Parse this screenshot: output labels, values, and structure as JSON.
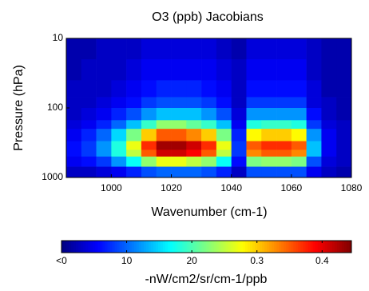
{
  "chart_data": {
    "type": "heatmap",
    "title": "O3 (ppb) Jacobians",
    "xlabel": "Wavenumber (cm-1)",
    "ylabel": "Pressure (hPa)",
    "colorbar_label": "-nW/cm2/sr/cm-1/ppb",
    "x": [
      985,
      990,
      995,
      1000,
      1005,
      1010,
      1015,
      1020,
      1025,
      1030,
      1035,
      1040,
      1045,
      1050,
      1055,
      1060,
      1065,
      1070,
      1075,
      1080
    ],
    "y": [
      10,
      20,
      40,
      70,
      100,
      150,
      200,
      300,
      400,
      500,
      700,
      1000
    ],
    "values": [
      [
        0.02,
        0.02,
        0.03,
        0.03,
        0.03,
        0.04,
        0.04,
        0.04,
        0.04,
        0.04,
        0.03,
        0.02,
        0.04,
        0.04,
        0.04,
        0.04,
        0.03,
        0.02,
        0.02
      ],
      [
        0.02,
        0.03,
        0.03,
        0.03,
        0.04,
        0.05,
        0.05,
        0.05,
        0.05,
        0.05,
        0.04,
        0.03,
        0.05,
        0.05,
        0.05,
        0.05,
        0.03,
        0.02,
        0.02
      ],
      [
        0.03,
        0.03,
        0.03,
        0.04,
        0.05,
        0.06,
        0.07,
        0.07,
        0.07,
        0.06,
        0.05,
        0.03,
        0.06,
        0.06,
        0.06,
        0.06,
        0.04,
        0.02,
        0.02
      ],
      [
        0.03,
        0.03,
        0.04,
        0.05,
        0.06,
        0.08,
        0.09,
        0.09,
        0.09,
        0.08,
        0.06,
        0.03,
        0.08,
        0.08,
        0.08,
        0.08,
        0.04,
        0.03,
        0.02
      ],
      [
        0.03,
        0.04,
        0.05,
        0.07,
        0.09,
        0.12,
        0.14,
        0.14,
        0.14,
        0.12,
        0.09,
        0.04,
        0.12,
        0.12,
        0.12,
        0.12,
        0.06,
        0.03,
        0.02
      ],
      [
        0.04,
        0.05,
        0.07,
        0.1,
        0.14,
        0.19,
        0.23,
        0.23,
        0.21,
        0.19,
        0.14,
        0.05,
        0.18,
        0.19,
        0.19,
        0.18,
        0.08,
        0.04,
        0.03
      ],
      [
        0.05,
        0.07,
        0.1,
        0.15,
        0.22,
        0.3,
        0.35,
        0.35,
        0.33,
        0.3,
        0.22,
        0.07,
        0.28,
        0.3,
        0.3,
        0.28,
        0.12,
        0.05,
        0.03
      ],
      [
        0.06,
        0.08,
        0.12,
        0.18,
        0.27,
        0.37,
        0.43,
        0.43,
        0.41,
        0.37,
        0.27,
        0.08,
        0.35,
        0.37,
        0.37,
        0.35,
        0.14,
        0.05,
        0.03
      ],
      [
        0.06,
        0.08,
        0.12,
        0.18,
        0.25,
        0.35,
        0.41,
        0.41,
        0.39,
        0.35,
        0.25,
        0.08,
        0.33,
        0.35,
        0.35,
        0.33,
        0.14,
        0.05,
        0.03
      ],
      [
        0.05,
        0.06,
        0.08,
        0.12,
        0.17,
        0.23,
        0.27,
        0.27,
        0.25,
        0.23,
        0.17,
        0.06,
        0.22,
        0.23,
        0.23,
        0.22,
        0.09,
        0.04,
        0.03
      ],
      [
        0.03,
        0.03,
        0.04,
        0.05,
        0.07,
        0.09,
        0.1,
        0.1,
        0.1,
        0.09,
        0.07,
        0.03,
        0.09,
        0.09,
        0.09,
        0.09,
        0.05,
        0.03,
        0.02
      ]
    ],
    "xlim": [
      985,
      1080
    ],
    "xticks": [
      1000,
      1020,
      1040,
      1060,
      1080
    ],
    "ylim": [
      10,
      1000
    ],
    "yticks": [
      10,
      100,
      1000
    ],
    "y_log": true,
    "y_reversed": true,
    "colormap": "jet",
    "clim": [
      0,
      0.445
    ],
    "cticks": [
      {
        "value": 0,
        "label": "<0"
      },
      {
        "value": 0.1,
        "label": "10"
      },
      {
        "value": 0.2,
        "label": "20"
      },
      0.3,
      0.4
    ]
  }
}
